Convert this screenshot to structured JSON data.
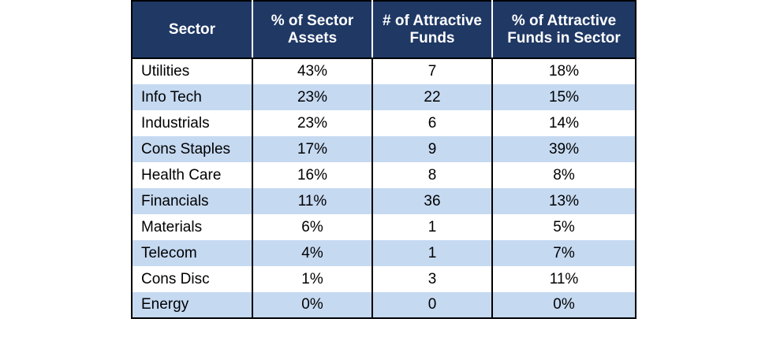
{
  "table": {
    "headers": [
      "Sector",
      "% of Sector Assets",
      "# of Attractive Funds",
      "% of Attractive Funds in Sector"
    ],
    "rows": [
      [
        "Utilities",
        "43%",
        "7",
        "18%"
      ],
      [
        "Info Tech",
        "23%",
        "22",
        "15%"
      ],
      [
        "Industrials",
        "23%",
        "6",
        "14%"
      ],
      [
        "Cons Staples",
        "17%",
        "9",
        "39%"
      ],
      [
        "Health Care",
        "16%",
        "8",
        "8%"
      ],
      [
        "Financials",
        "11%",
        "36",
        "13%"
      ],
      [
        "Materials",
        "6%",
        "1",
        "5%"
      ],
      [
        "Telecom",
        "4%",
        "1",
        "7%"
      ],
      [
        "Cons Disc",
        "1%",
        "3",
        "11%"
      ],
      [
        "Energy",
        "0%",
        "0",
        "0%"
      ]
    ]
  },
  "colors": {
    "header_bg": "#1f3864",
    "header_text": "#ffffff",
    "stripe": "#c5d9f1",
    "row_bg": "#ffffff"
  }
}
